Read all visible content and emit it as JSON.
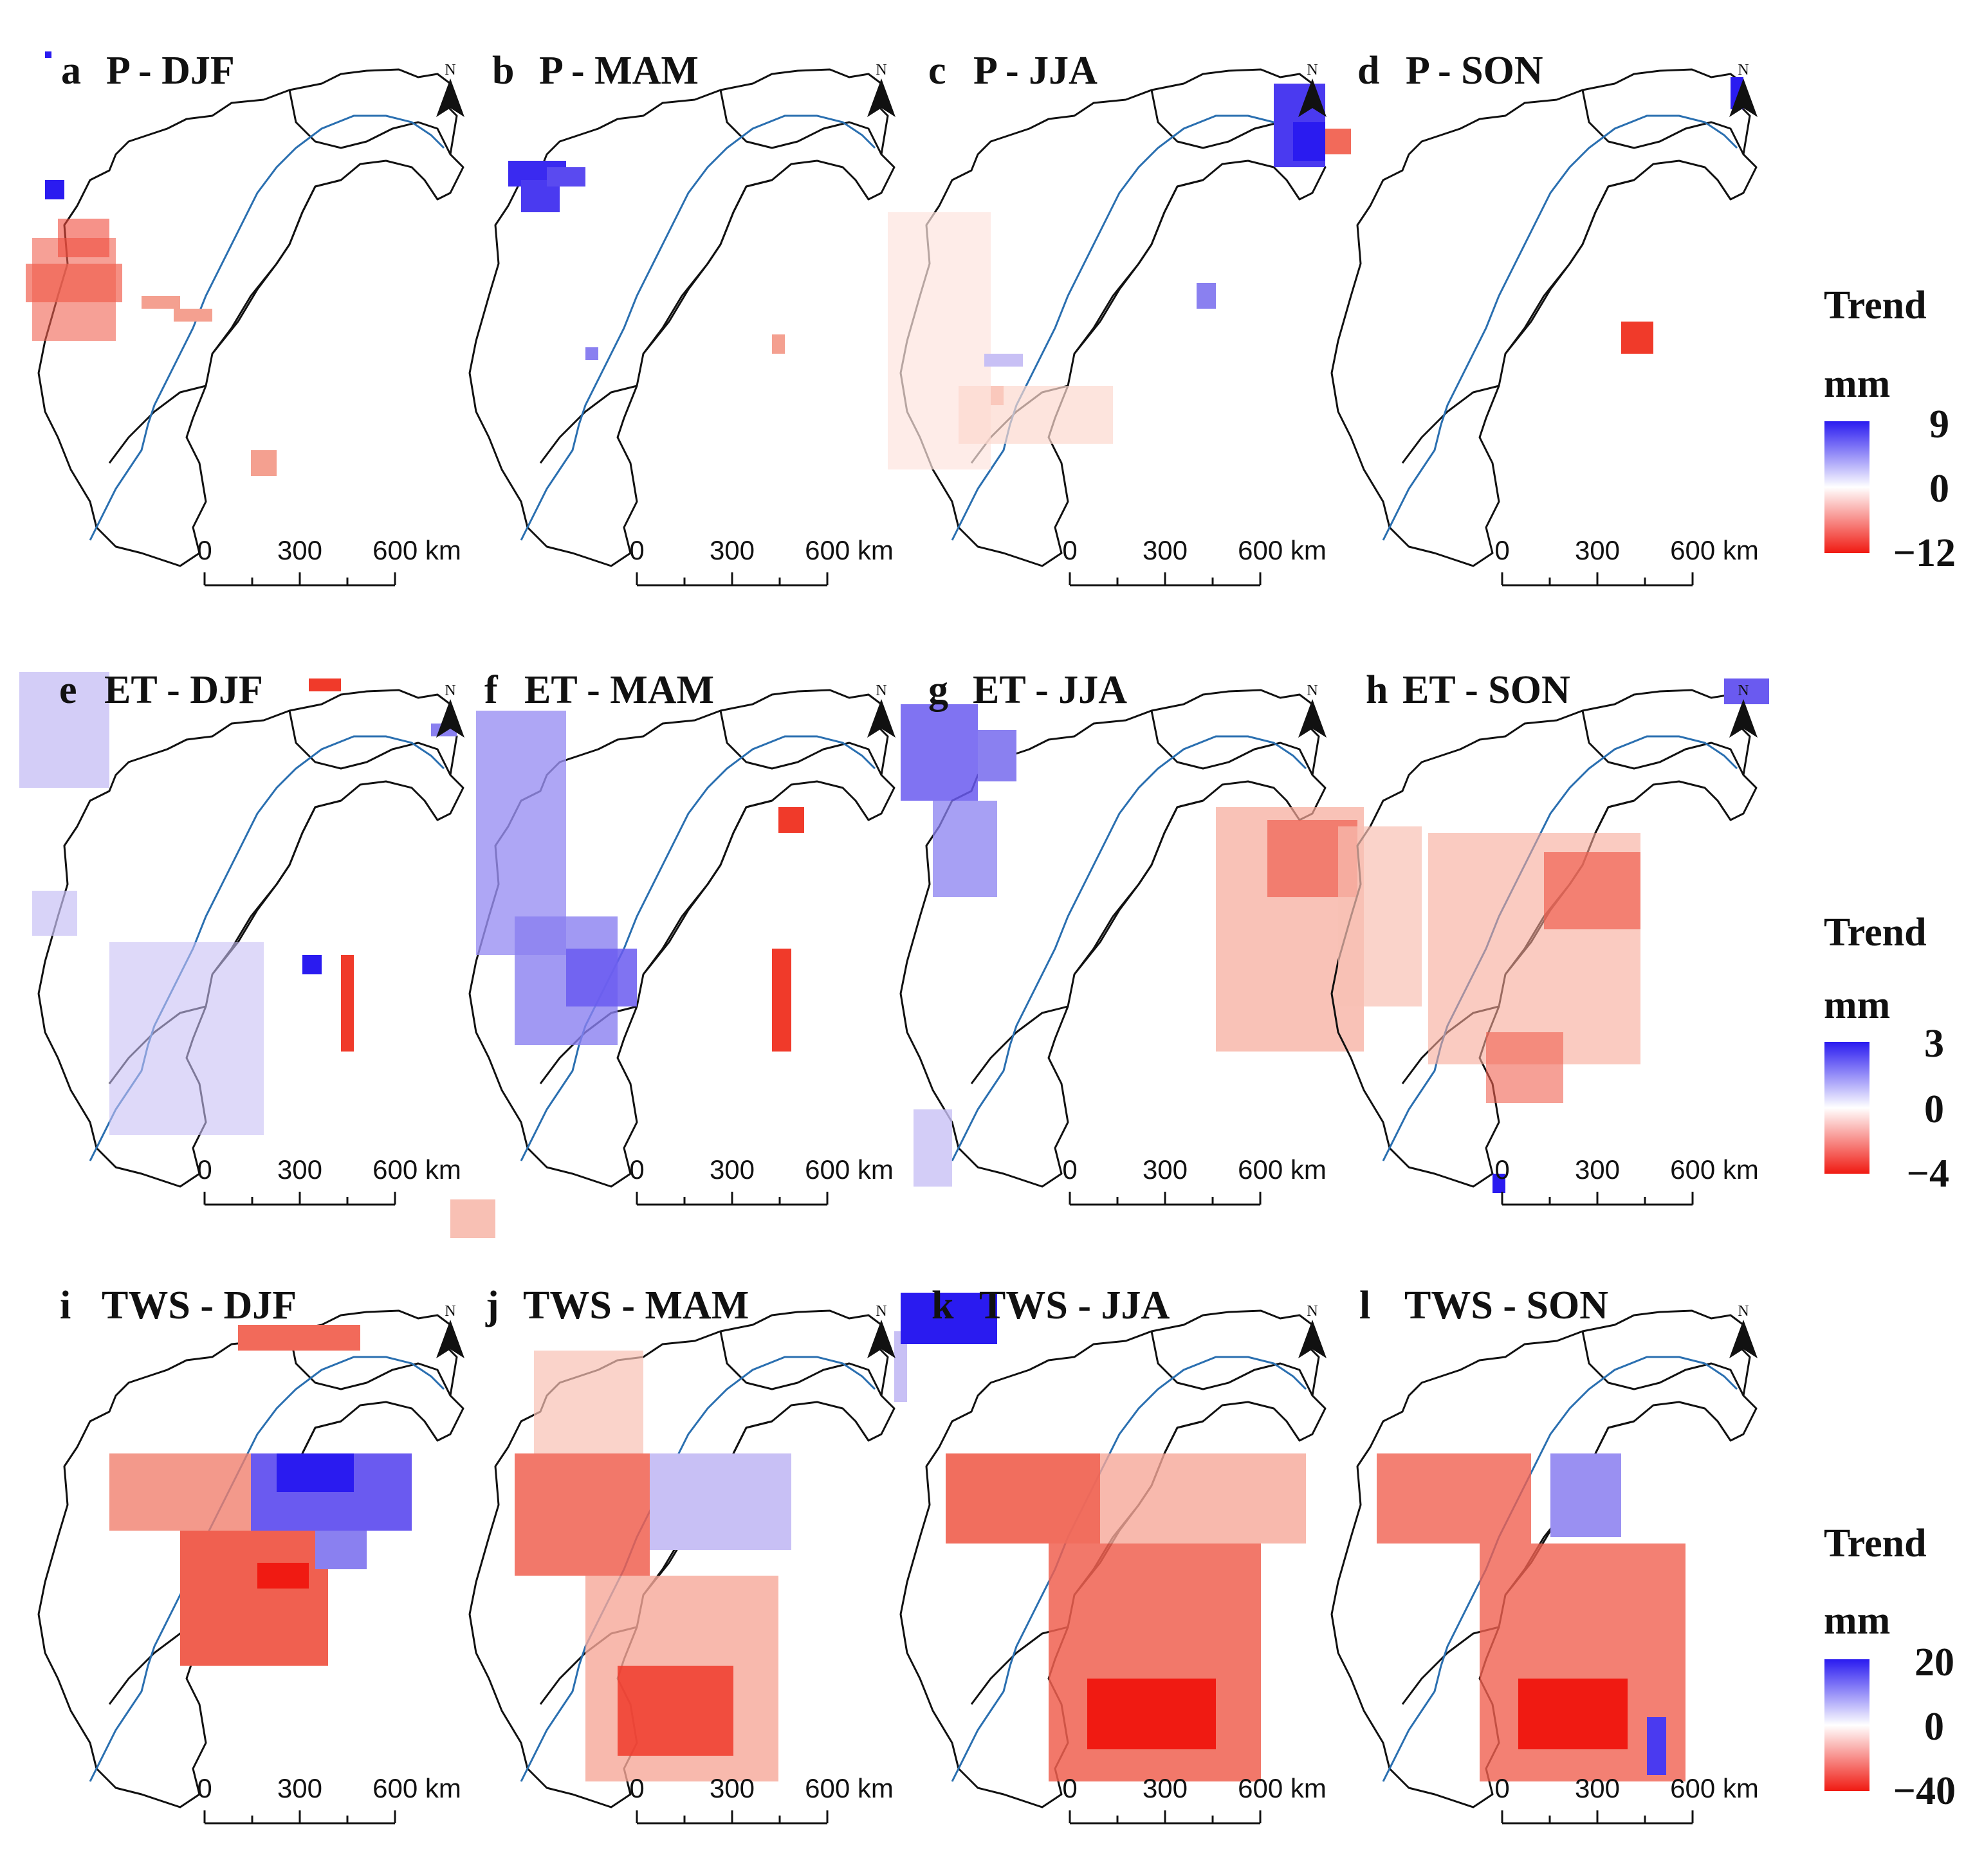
{
  "figure": {
    "panels": [
      {
        "letter": "a",
        "title": "P - DJF",
        "variable": "P",
        "season": "DJF"
      },
      {
        "letter": "b",
        "title": "P - MAM",
        "variable": "P",
        "season": "MAM"
      },
      {
        "letter": "c",
        "title": "P - JJA",
        "variable": "P",
        "season": "JJA"
      },
      {
        "letter": "d",
        "title": "P - SON",
        "variable": "P",
        "season": "SON"
      },
      {
        "letter": "e",
        "title": "ET - DJF",
        "variable": "ET",
        "season": "DJF"
      },
      {
        "letter": "f",
        "title": "ET - MAM",
        "variable": "ET",
        "season": "MAM"
      },
      {
        "letter": "g",
        "title": "ET - JJA",
        "variable": "ET",
        "season": "JJA"
      },
      {
        "letter": "h",
        "title": "ET - SON",
        "variable": "ET",
        "season": "SON"
      },
      {
        "letter": "i",
        "title": "TWS - DJF",
        "variable": "TWS",
        "season": "DJF"
      },
      {
        "letter": "j",
        "title": "TWS - MAM",
        "variable": "TWS",
        "season": "MAM"
      },
      {
        "letter": "k",
        "title": "TWS - JJA",
        "variable": "TWS",
        "season": "JJA"
      },
      {
        "letter": "l",
        "title": "TWS - SON",
        "variable": "TWS",
        "season": "SON"
      }
    ],
    "scale_bar": {
      "labels": [
        "0",
        "300",
        "600 km"
      ]
    },
    "north_arrow_label": "N",
    "legends": [
      {
        "title": "Trend",
        "unit": "mm",
        "max": "9",
        "mid": "0",
        "min": "−12"
      },
      {
        "title": "Trend",
        "unit": "mm",
        "max": "3",
        "mid": "0",
        "min": "−4"
      },
      {
        "title": "Trend",
        "unit": "mm",
        "max": "20",
        "mid": "0",
        "min": "−40"
      }
    ],
    "colors": {
      "positive": "#2a1bf0",
      "zero": "#ffffff",
      "negative": "#f01a12",
      "outline": "#111111",
      "river": "#2a6fb0"
    }
  }
}
